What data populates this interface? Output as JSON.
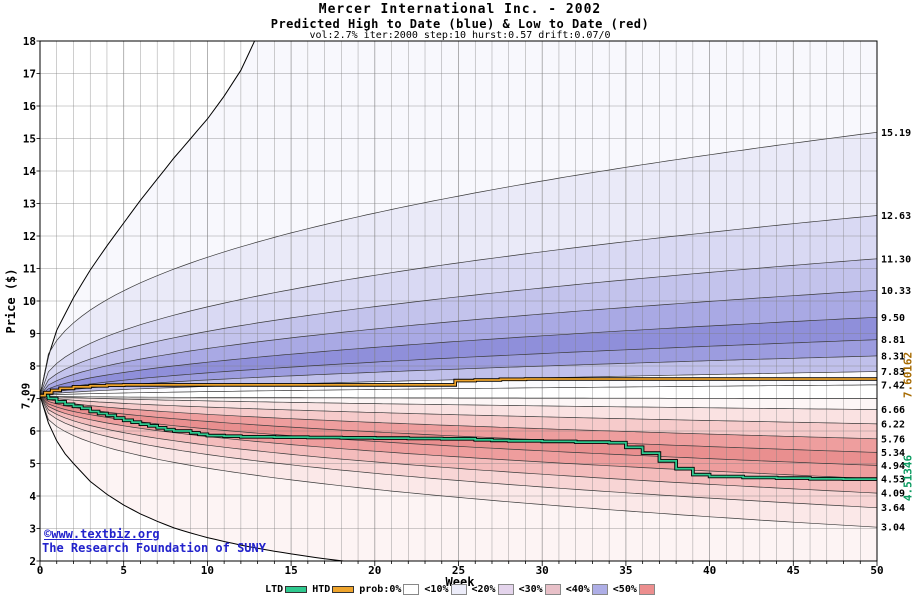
{
  "title": {
    "line1": "Mercer International Inc. - 2002",
    "line2": "Predicted High to Date (blue) &  Low to Date (red)",
    "line3": "vol:2.7% iter:2000 step:10 hurst:0.57 drift:0.07/0"
  },
  "watermark": {
    "line1": "©www.textbiz.org",
    "line2": "The Research Foundation of SUNY",
    "color": "#2222cc"
  },
  "legend": {
    "items": [
      {
        "label": "LTD",
        "type": "line",
        "color": "#2fc98f"
      },
      {
        "label": "HTD",
        "type": "line",
        "color": "#eea42c"
      },
      {
        "label": "prob:0%",
        "type": "box",
        "color": "#ffffff"
      },
      {
        "label": "<10%",
        "type": "box",
        "color": "#ececf9"
      },
      {
        "label": "<20%",
        "type": "box",
        "color": "#e4d4ec"
      },
      {
        "label": "<30%",
        "type": "box",
        "color": "#e8c0c8"
      },
      {
        "label": "<40%",
        "type": "box",
        "color": "#aeaee6"
      },
      {
        "label": "<50%",
        "type": "box",
        "color": "#ec8e8e"
      }
    ]
  },
  "chart_data": {
    "type": "area",
    "title": "Mercer International Inc. - 2002",
    "subtitle": "Predicted High to Date (blue) &  Low to Date (red)",
    "params": "vol:2.7% iter:2000 step:10 hurst:0.57 drift:0.07/0",
    "xlabel": "Week",
    "ylabel": "Price ($)",
    "x_range": [
      0,
      50
    ],
    "y_range": [
      2,
      18
    ],
    "x_ticks": [
      0,
      5,
      10,
      15,
      20,
      25,
      30,
      35,
      40,
      45,
      50
    ],
    "y_ticks": [
      2,
      3,
      4,
      5,
      6,
      7,
      8,
      9,
      10,
      11,
      12,
      13,
      14,
      15,
      16,
      17,
      18
    ],
    "grid": "on",
    "start": 7.09,
    "start_label": "7.09",
    "curves": [
      {
        "role": "envelope",
        "label": null,
        "points": [
          [
            0,
            7.09
          ],
          [
            0.5,
            8.3
          ],
          [
            1,
            9.1
          ],
          [
            1.5,
            9.6
          ],
          [
            2,
            10.1
          ],
          [
            3,
            10.95
          ],
          [
            4,
            11.7
          ],
          [
            5,
            12.4
          ],
          [
            6,
            13.1
          ],
          [
            7,
            13.75
          ],
          [
            8,
            14.4
          ],
          [
            9,
            15.0
          ],
          [
            10,
            15.6
          ],
          [
            11,
            16.3
          ],
          [
            12,
            17.1
          ],
          [
            13,
            18.2
          ],
          [
            14,
            19.2
          ]
        ]
      },
      {
        "role": "quantile",
        "label": "15.19",
        "v50": 15.19,
        "p": 0.4
      },
      {
        "role": "quantile",
        "label": "12.63",
        "v50": 12.63,
        "p": 0.44
      },
      {
        "role": "quantile",
        "label": "11.30",
        "v50": 11.3,
        "p": 0.47
      },
      {
        "role": "quantile",
        "label": "10.33",
        "v50": 10.33,
        "p": 0.5
      },
      {
        "role": "quantile",
        "label": "9.50",
        "v50": 9.5,
        "p": 0.53
      },
      {
        "role": "quantile",
        "label": "8.81",
        "v50": 8.81,
        "p": 0.56
      },
      {
        "role": "quantile",
        "label": "8.31",
        "v50": 8.31,
        "p": 0.58
      },
      {
        "role": "quantile",
        "label": "7.83",
        "v50": 7.83,
        "p": 0.6
      },
      {
        "role": "quantile",
        "label": "7.42",
        "v50": 7.42,
        "p": 0.62
      },
      {
        "role": "quantile",
        "label": null,
        "v50": 7.0,
        "p": 0.3
      },
      {
        "role": "quantile",
        "label": "6.66",
        "v50": 6.66,
        "p": 0.6
      },
      {
        "role": "quantile",
        "label": "6.22",
        "v50": 6.22,
        "p": 0.56
      },
      {
        "role": "quantile",
        "label": "5.76",
        "v50": 5.76,
        "p": 0.52
      },
      {
        "role": "quantile",
        "label": "5.34",
        "v50": 5.34,
        "p": 0.49
      },
      {
        "role": "quantile",
        "label": "4.94",
        "v50": 4.94,
        "p": 0.46
      },
      {
        "role": "quantile",
        "label": "4.53",
        "v50": 4.53,
        "p": 0.44
      },
      {
        "role": "quantile",
        "label": "4.09",
        "v50": 4.09,
        "p": 0.42
      },
      {
        "role": "quantile",
        "label": "3.64",
        "v50": 3.64,
        "p": 0.4
      },
      {
        "role": "quantile",
        "label": "3.04",
        "v50": 3.04,
        "p": 0.37
      },
      {
        "role": "envelope",
        "label": null,
        "points": [
          [
            0,
            7.09
          ],
          [
            0.5,
            6.25
          ],
          [
            1,
            5.7
          ],
          [
            1.5,
            5.3
          ],
          [
            2,
            5.0
          ],
          [
            3,
            4.45
          ],
          [
            4,
            4.05
          ],
          [
            5,
            3.72
          ],
          [
            6,
            3.45
          ],
          [
            7,
            3.22
          ],
          [
            8,
            3.02
          ],
          [
            9,
            2.86
          ],
          [
            10,
            2.72
          ],
          [
            11,
            2.6
          ],
          [
            12,
            2.49
          ],
          [
            13,
            2.39
          ],
          [
            14,
            2.3
          ],
          [
            15,
            2.22
          ],
          [
            16,
            2.14
          ],
          [
            17,
            2.07
          ],
          [
            18,
            2.01
          ],
          [
            19,
            1.95
          ],
          [
            20,
            1.9
          ]
        ]
      }
    ],
    "fills": [
      "#f8f8fd",
      "#eaeaf8",
      "#d9d9f3",
      "#c3c3ec",
      "#a9a9e4",
      "#8f8fda",
      "#9c9cdf",
      "#c0c0eb",
      "#fbfbfe",
      "#ffffff",
      "#fdf6f6",
      "#fae2e2",
      "#f6cbcb",
      "#ee9e9e",
      "#e98f8f",
      "#ee9d9d",
      "#f4bcbc",
      "#f8d5d5",
      "#fbe8e8",
      "#fdf4f4"
    ],
    "htd": {
      "name": "HTD",
      "color": "#eea42c",
      "label_color": "#a66a00",
      "final_label": "7.60162",
      "points": [
        [
          0,
          7.09
        ],
        [
          0.3,
          7.18
        ],
        [
          0.7,
          7.25
        ],
        [
          1.2,
          7.31
        ],
        [
          2,
          7.36
        ],
        [
          3,
          7.39
        ],
        [
          4,
          7.41
        ],
        [
          5,
          7.42
        ],
        [
          24.5,
          7.42
        ],
        [
          24.8,
          7.55
        ],
        [
          26,
          7.57
        ],
        [
          27.5,
          7.59
        ],
        [
          29,
          7.6
        ],
        [
          50,
          7.6
        ]
      ]
    },
    "ltd": {
      "name": "LTD",
      "color": "#2fc98f",
      "label_color": "#0a9a60",
      "final_label": "4.51346",
      "points": [
        [
          0,
          7.09
        ],
        [
          0.5,
          7.0
        ],
        [
          1,
          6.9
        ],
        [
          1.5,
          6.82
        ],
        [
          2,
          6.76
        ],
        [
          2.5,
          6.7
        ],
        [
          3,
          6.6
        ],
        [
          3.5,
          6.54
        ],
        [
          4,
          6.48
        ],
        [
          4.5,
          6.4
        ],
        [
          5,
          6.33
        ],
        [
          5.5,
          6.27
        ],
        [
          6,
          6.21
        ],
        [
          6.5,
          6.16
        ],
        [
          7,
          6.1
        ],
        [
          7.5,
          6.04
        ],
        [
          8,
          6.0
        ],
        [
          9,
          5.94
        ],
        [
          9.5,
          5.9
        ],
        [
          10,
          5.86
        ],
        [
          11,
          5.84
        ],
        [
          12,
          5.82
        ],
        [
          14,
          5.81
        ],
        [
          16,
          5.8
        ],
        [
          18,
          5.79
        ],
        [
          20,
          5.78
        ],
        [
          22,
          5.77
        ],
        [
          24,
          5.76
        ],
        [
          26,
          5.73
        ],
        [
          27,
          5.71
        ],
        [
          28,
          5.7
        ],
        [
          30,
          5.68
        ],
        [
          32,
          5.66
        ],
        [
          34,
          5.64
        ],
        [
          35,
          5.5
        ],
        [
          36,
          5.32
        ],
        [
          37,
          5.08
        ],
        [
          38,
          4.84
        ],
        [
          39,
          4.66
        ],
        [
          40,
          4.6
        ],
        [
          42,
          4.57
        ],
        [
          44,
          4.55
        ],
        [
          46,
          4.53
        ],
        [
          48,
          4.52
        ],
        [
          50,
          4.51
        ]
      ]
    }
  }
}
